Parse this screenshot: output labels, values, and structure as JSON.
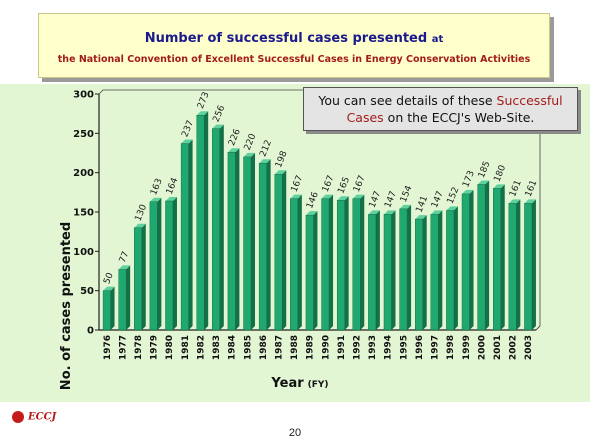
{
  "title": {
    "line1_main": "Number of successful cases presented",
    "line1_small": "at",
    "line2": "the National Convention of Excellent Successful Cases in Energy Conservation Activities"
  },
  "callout": {
    "text_before": "You can see details of these",
    "highlight": "Successful Cases",
    "text_after": "on the ECCJ's Web-Site."
  },
  "logo": {
    "text": "ECCJ"
  },
  "page_number": "20",
  "colors": {
    "bar_front": "#1fa86f",
    "bar_side": "#137048",
    "bar_top": "#5fd19d",
    "title_blue": "#1a1a8c",
    "title_red": "#a31c1c",
    "chart_bg": "#e3f6d3"
  },
  "chart_data": {
    "type": "bar",
    "xlabel": "Year",
    "xlabel_unit": "(FY)",
    "ylabel": "No. of cases presented",
    "ylim": [
      0,
      300
    ],
    "yticks": [
      0,
      50,
      100,
      150,
      200,
      250,
      300
    ],
    "grid": false,
    "categories": [
      "1976",
      "1977",
      "1978",
      "1979",
      "1980",
      "1981",
      "1982",
      "1983",
      "1984",
      "1985",
      "1986",
      "1987",
      "1988",
      "1989",
      "1990",
      "1991",
      "1992",
      "1993",
      "1994",
      "1995",
      "1996",
      "1997",
      "1998",
      "1999",
      "2000",
      "2001",
      "2002",
      "2003"
    ],
    "values": [
      50,
      77,
      130,
      163,
      164,
      237,
      273,
      256,
      226,
      220,
      212,
      198,
      167,
      146,
      167,
      165,
      167,
      147,
      147,
      154,
      141,
      147,
      152,
      173,
      185,
      180,
      161,
      161
    ]
  }
}
